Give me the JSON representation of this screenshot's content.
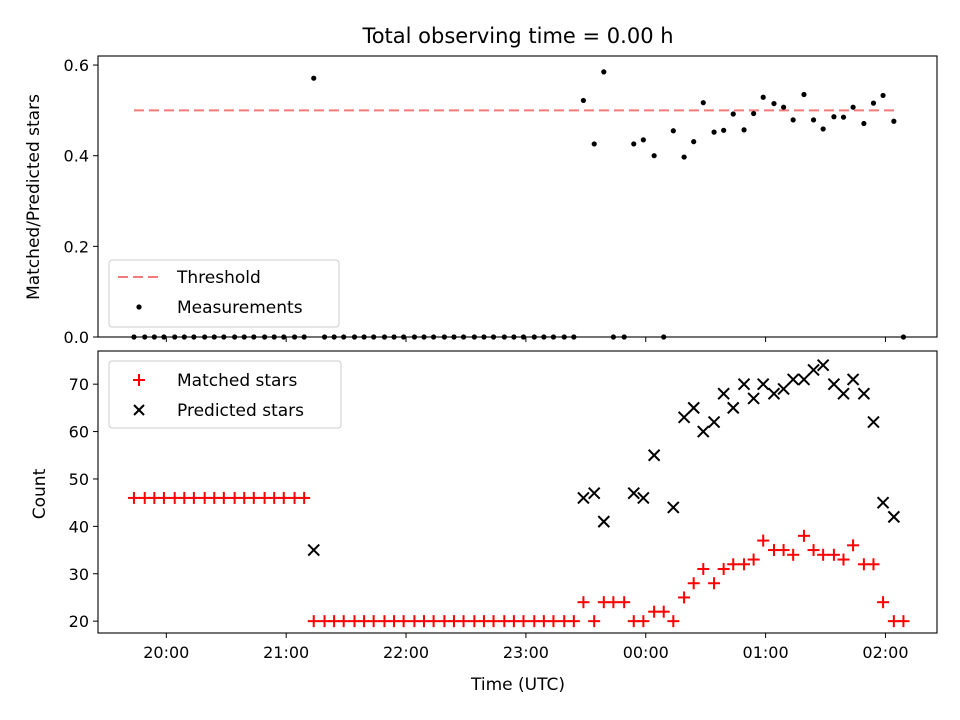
{
  "chart_data": [
    {
      "type": "scatter",
      "title": "Total observing time = 0.00 h",
      "xlabel": "",
      "ylabel": "Matched/Predicted stars",
      "x_unit": "hours (UTC, hours past 24 continue after midnight)",
      "xlim": [
        19.43,
        26.43
      ],
      "ylim": [
        0.0,
        0.62
      ],
      "y_ticks": [
        "0.0",
        "0.2",
        "0.4",
        "0.6"
      ],
      "legend_location": "lower-left",
      "threshold": {
        "name": "Threshold",
        "value": 0.5,
        "x_start": 19.73,
        "x_end": 26.1,
        "color": "#f47a7a",
        "style": "dashed"
      },
      "series": [
        {
          "name": "Measurements",
          "color": "#000000",
          "marker": "dot",
          "points": [
            [
              19.73,
              0.0
            ],
            [
              19.82,
              0.0
            ],
            [
              19.9,
              0.0
            ],
            [
              19.98,
              0.0
            ],
            [
              20.07,
              0.0
            ],
            [
              20.15,
              0.0
            ],
            [
              20.23,
              0.0
            ],
            [
              20.32,
              0.0
            ],
            [
              20.4,
              0.0
            ],
            [
              20.48,
              0.0
            ],
            [
              20.57,
              0.0
            ],
            [
              20.65,
              0.0
            ],
            [
              20.73,
              0.0
            ],
            [
              20.82,
              0.0
            ],
            [
              20.9,
              0.0
            ],
            [
              20.98,
              0.0
            ],
            [
              21.07,
              0.0
            ],
            [
              21.15,
              0.0
            ],
            [
              21.23,
              0.571
            ],
            [
              21.32,
              0.0
            ],
            [
              21.4,
              0.0
            ],
            [
              21.48,
              0.0
            ],
            [
              21.57,
              0.0
            ],
            [
              21.65,
              0.0
            ],
            [
              21.73,
              0.0
            ],
            [
              21.82,
              0.0
            ],
            [
              21.9,
              0.0
            ],
            [
              21.98,
              0.0
            ],
            [
              22.07,
              0.0
            ],
            [
              22.15,
              0.0
            ],
            [
              22.23,
              0.0
            ],
            [
              22.32,
              0.0
            ],
            [
              22.4,
              0.0
            ],
            [
              22.48,
              0.0
            ],
            [
              22.57,
              0.0
            ],
            [
              22.65,
              0.0
            ],
            [
              22.73,
              0.0
            ],
            [
              22.82,
              0.0
            ],
            [
              22.9,
              0.0
            ],
            [
              22.98,
              0.0
            ],
            [
              23.07,
              0.0
            ],
            [
              23.15,
              0.0
            ],
            [
              23.23,
              0.0
            ],
            [
              23.32,
              0.0
            ],
            [
              23.4,
              0.0
            ],
            [
              23.48,
              0.522
            ],
            [
              23.57,
              0.426
            ],
            [
              23.65,
              0.585
            ],
            [
              23.73,
              0.0
            ],
            [
              23.82,
              0.0
            ],
            [
              23.9,
              0.426
            ],
            [
              23.98,
              0.435
            ],
            [
              24.07,
              0.4
            ],
            [
              24.15,
              0.0
            ],
            [
              24.23,
              0.455
            ],
            [
              24.32,
              0.397
            ],
            [
              24.4,
              0.431
            ],
            [
              24.48,
              0.517
            ],
            [
              24.57,
              0.452
            ],
            [
              24.65,
              0.456
            ],
            [
              24.73,
              0.492
            ],
            [
              24.82,
              0.457
            ],
            [
              24.9,
              0.493
            ],
            [
              24.98,
              0.529
            ],
            [
              25.07,
              0.515
            ],
            [
              25.15,
              0.507
            ],
            [
              25.23,
              0.479
            ],
            [
              25.32,
              0.535
            ],
            [
              25.4,
              0.479
            ],
            [
              25.48,
              0.459
            ],
            [
              25.57,
              0.486
            ],
            [
              25.65,
              0.485
            ],
            [
              25.73,
              0.507
            ],
            [
              25.82,
              0.471
            ],
            [
              25.9,
              0.516
            ],
            [
              25.98,
              0.533
            ],
            [
              26.07,
              0.476
            ],
            [
              26.15,
              0.0
            ]
          ]
        }
      ]
    },
    {
      "type": "scatter",
      "title": "",
      "xlabel": "Time (UTC)",
      "ylabel": "Count",
      "x_unit": "hours (UTC, hours past 24 continue after midnight)",
      "xlim": [
        19.43,
        26.43
      ],
      "ylim": [
        17.5,
        77.0
      ],
      "y_ticks": [
        "20",
        "30",
        "40",
        "50",
        "60",
        "70"
      ],
      "x_ticks": [
        {
          "value": 20,
          "label": "20:00"
        },
        {
          "value": 21,
          "label": "21:00"
        },
        {
          "value": 22,
          "label": "22:00"
        },
        {
          "value": 23,
          "label": "23:00"
        },
        {
          "value": 24,
          "label": "00:00"
        },
        {
          "value": 25,
          "label": "01:00"
        },
        {
          "value": 26,
          "label": "02:00"
        }
      ],
      "legend_location": "upper-left",
      "series": [
        {
          "name": "Matched stars",
          "color": "#ff0000",
          "marker": "plus",
          "points": [
            [
              19.73,
              46
            ],
            [
              19.82,
              46
            ],
            [
              19.9,
              46
            ],
            [
              19.98,
              46
            ],
            [
              20.07,
              46
            ],
            [
              20.15,
              46
            ],
            [
              20.23,
              46
            ],
            [
              20.32,
              46
            ],
            [
              20.4,
              46
            ],
            [
              20.48,
              46
            ],
            [
              20.57,
              46
            ],
            [
              20.65,
              46
            ],
            [
              20.73,
              46
            ],
            [
              20.82,
              46
            ],
            [
              20.9,
              46
            ],
            [
              20.98,
              46
            ],
            [
              21.07,
              46
            ],
            [
              21.15,
              46
            ],
            [
              21.23,
              20
            ],
            [
              21.32,
              20
            ],
            [
              21.4,
              20
            ],
            [
              21.48,
              20
            ],
            [
              21.57,
              20
            ],
            [
              21.65,
              20
            ],
            [
              21.73,
              20
            ],
            [
              21.82,
              20
            ],
            [
              21.9,
              20
            ],
            [
              21.98,
              20
            ],
            [
              22.07,
              20
            ],
            [
              22.15,
              20
            ],
            [
              22.23,
              20
            ],
            [
              22.32,
              20
            ],
            [
              22.4,
              20
            ],
            [
              22.48,
              20
            ],
            [
              22.57,
              20
            ],
            [
              22.65,
              20
            ],
            [
              22.73,
              20
            ],
            [
              22.82,
              20
            ],
            [
              22.9,
              20
            ],
            [
              22.98,
              20
            ],
            [
              23.07,
              20
            ],
            [
              23.15,
              20
            ],
            [
              23.23,
              20
            ],
            [
              23.32,
              20
            ],
            [
              23.4,
              20
            ],
            [
              23.48,
              24
            ],
            [
              23.57,
              20
            ],
            [
              23.65,
              24
            ],
            [
              23.73,
              24
            ],
            [
              23.82,
              24
            ],
            [
              23.9,
              20
            ],
            [
              23.98,
              20
            ],
            [
              24.07,
              22
            ],
            [
              24.15,
              22
            ],
            [
              24.23,
              20
            ],
            [
              24.32,
              25
            ],
            [
              24.4,
              28
            ],
            [
              24.48,
              31
            ],
            [
              24.57,
              28
            ],
            [
              24.65,
              31
            ],
            [
              24.73,
              32
            ],
            [
              24.82,
              32
            ],
            [
              24.9,
              33
            ],
            [
              24.98,
              37
            ],
            [
              25.07,
              35
            ],
            [
              25.15,
              35
            ],
            [
              25.23,
              34
            ],
            [
              25.32,
              38
            ],
            [
              25.4,
              35
            ],
            [
              25.48,
              34
            ],
            [
              25.57,
              34
            ],
            [
              25.65,
              33
            ],
            [
              25.73,
              36
            ],
            [
              25.82,
              32
            ],
            [
              25.9,
              32
            ],
            [
              25.98,
              24
            ],
            [
              26.07,
              20
            ],
            [
              26.15,
              20
            ]
          ]
        },
        {
          "name": "Predicted stars",
          "color": "#000000",
          "marker": "x",
          "points": [
            [
              21.23,
              35
            ],
            [
              23.48,
              46
            ],
            [
              23.57,
              47
            ],
            [
              23.65,
              41
            ],
            [
              23.9,
              47
            ],
            [
              23.98,
              46
            ],
            [
              24.07,
              55
            ],
            [
              24.23,
              44
            ],
            [
              24.32,
              63
            ],
            [
              24.4,
              65
            ],
            [
              24.48,
              60
            ],
            [
              24.57,
              62
            ],
            [
              24.65,
              68
            ],
            [
              24.73,
              65
            ],
            [
              24.82,
              70
            ],
            [
              24.9,
              67
            ],
            [
              24.98,
              70
            ],
            [
              25.07,
              68
            ],
            [
              25.15,
              69
            ],
            [
              25.23,
              71
            ],
            [
              25.32,
              71
            ],
            [
              25.4,
              73
            ],
            [
              25.48,
              74
            ],
            [
              25.57,
              70
            ],
            [
              25.65,
              68
            ],
            [
              25.73,
              71
            ],
            [
              25.82,
              68
            ],
            [
              25.9,
              62
            ],
            [
              25.98,
              45
            ],
            [
              26.07,
              42
            ]
          ]
        }
      ]
    }
  ]
}
